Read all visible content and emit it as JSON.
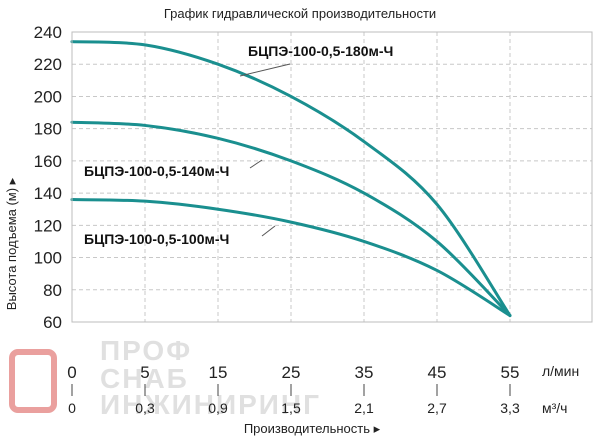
{
  "chart_data": {
    "type": "line",
    "title": "График гидравлической производительности",
    "ylabel": "Высота подъема (м)",
    "xlabel": "Производительность",
    "ylim": [
      60,
      240
    ],
    "yticks": [
      60,
      80,
      100,
      120,
      140,
      160,
      180,
      200,
      220,
      240
    ],
    "x_lmin_ticks": [
      0,
      5,
      15,
      25,
      35,
      45,
      55
    ],
    "x_lmin_unit": "л/мин",
    "x_m3h_ticks": [
      "0",
      "0,3",
      "0,9",
      "1,5",
      "2,1",
      "2,7",
      "3,3"
    ],
    "x_m3h_unit": "м³/ч",
    "grid": true,
    "line_color": "#1a8f8f",
    "series": [
      {
        "name": "БЦПЭ-100-0,5-180м-Ч",
        "x": [
          0,
          5,
          15,
          25,
          35,
          45,
          55
        ],
        "y": [
          234,
          232,
          220,
          200,
          172,
          133,
          64
        ]
      },
      {
        "name": "БЦПЭ-100-0,5-140м-Ч",
        "x": [
          0,
          5,
          15,
          25,
          35,
          45,
          55
        ],
        "y": [
          184,
          182,
          174,
          160,
          140,
          110,
          64
        ]
      },
      {
        "name": "БЦПЭ-100-0,5-100м-Ч",
        "x": [
          0,
          5,
          15,
          25,
          35,
          45,
          55
        ],
        "y": [
          136,
          135,
          130,
          122,
          110,
          92,
          64
        ]
      }
    ]
  },
  "watermark": {
    "line1": "ПРОФ",
    "line2": "СНАБ",
    "line3": "ИНЖИНИРИНГ",
    "color": "#d9534f"
  }
}
